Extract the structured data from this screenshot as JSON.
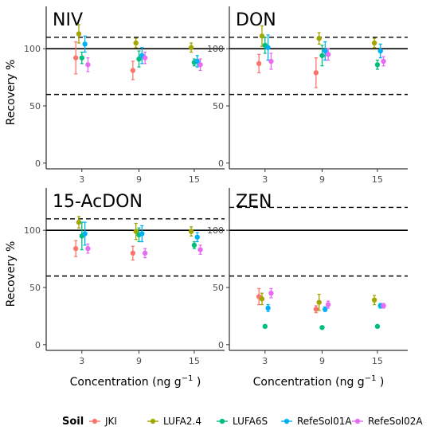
{
  "chart_data": {
    "type": "scatter",
    "figure_ylabel": "Recovery %",
    "figure_xlabel_main": "Concentration (ng g",
    "figure_xlabel_sup": "−1",
    "figure_xlabel_close": " )",
    "x_categories": [
      "3",
      "9",
      "15"
    ],
    "y_ticks": [
      "0",
      "50",
      "100"
    ],
    "ylim": [
      -5,
      137
    ],
    "reference_lines": {
      "solid": 100,
      "dashed_low": 60
    },
    "legend": {
      "title": "Soil",
      "position": "bottom",
      "items": [
        {
          "name": "JKI",
          "color": "#F8766D"
        },
        {
          "name": "LUFA2.4",
          "color": "#A3A500"
        },
        {
          "name": "LUFA6S",
          "color": "#00BF7D"
        },
        {
          "name": "RefeSol01A",
          "color": "#00B0F6"
        },
        {
          "name": "RefeSol02A",
          "color": "#E76BF3"
        }
      ]
    },
    "panels": [
      {
        "title": "NIV",
        "dashed_high": 110,
        "series": [
          {
            "name": "JKI",
            "values": [
              {
                "x": "3",
                "y": 92,
                "err": 14
              },
              {
                "x": "9",
                "y": 81,
                "err": 8
              },
              {
                "x": "15",
                "y": null,
                "err": null
              }
            ]
          },
          {
            "name": "LUFA2.4",
            "values": [
              {
                "x": "3",
                "y": 113,
                "err": 8
              },
              {
                "x": "9",
                "y": 105,
                "err": 4
              },
              {
                "x": "15",
                "y": 101,
                "err": 4
              }
            ]
          },
          {
            "name": "LUFA6S",
            "values": [
              {
                "x": "3",
                "y": 92,
                "err": 5
              },
              {
                "x": "9",
                "y": 91,
                "err": 7
              },
              {
                "x": "15",
                "y": 88,
                "err": 3
              }
            ]
          },
          {
            "name": "RefeSol01A",
            "values": [
              {
                "x": "3",
                "y": 104,
                "err": 7
              },
              {
                "x": "9",
                "y": 94,
                "err": 7
              },
              {
                "x": "15",
                "y": 89,
                "err": 5
              }
            ]
          },
          {
            "name": "RefeSol02A",
            "values": [
              {
                "x": "3",
                "y": 86,
                "err": 6
              },
              {
                "x": "9",
                "y": 92,
                "err": 5
              },
              {
                "x": "15",
                "y": 86,
                "err": 5
              }
            ]
          }
        ]
      },
      {
        "title": "DON",
        "dashed_high": 110,
        "series": [
          {
            "name": "JKI",
            "values": [
              {
                "x": "3",
                "y": 87,
                "err": 8
              },
              {
                "x": "9",
                "y": 79,
                "err": 13
              },
              {
                "x": "15",
                "y": null,
                "err": null
              }
            ]
          },
          {
            "name": "LUFA2.4",
            "values": [
              {
                "x": "3",
                "y": 111,
                "err": 9
              },
              {
                "x": "9",
                "y": 109,
                "err": 5
              },
              {
                "x": "15",
                "y": 105,
                "err": 4
              }
            ]
          },
          {
            "name": "LUFA6S",
            "values": [
              {
                "x": "3",
                "y": 103,
                "err": 7
              },
              {
                "x": "9",
                "y": 94,
                "err": 9
              },
              {
                "x": "15",
                "y": 86,
                "err": 4
              }
            ]
          },
          {
            "name": "RefeSol01A",
            "values": [
              {
                "x": "3",
                "y": 101,
                "err": 11
              },
              {
                "x": "9",
                "y": 98,
                "err": 8
              },
              {
                "x": "15",
                "y": 98,
                "err": 6
              }
            ]
          },
          {
            "name": "RefeSol02A",
            "values": [
              {
                "x": "3",
                "y": 89,
                "err": 7
              },
              {
                "x": "9",
                "y": 95,
                "err": 5
              },
              {
                "x": "15",
                "y": 89,
                "err": 4
              }
            ]
          }
        ]
      },
      {
        "title": "15-AcDON",
        "dashed_high": 110,
        "series": [
          {
            "name": "JKI",
            "values": [
              {
                "x": "3",
                "y": 84,
                "err": 7
              },
              {
                "x": "9",
                "y": 80,
                "err": 6
              },
              {
                "x": "15",
                "y": null,
                "err": null
              }
            ]
          },
          {
            "name": "LUFA2.4",
            "values": [
              {
                "x": "3",
                "y": 107,
                "err": 5
              },
              {
                "x": "9",
                "y": 99,
                "err": 7
              },
              {
                "x": "15",
                "y": 99,
                "err": 4
              }
            ]
          },
          {
            "name": "LUFA6S",
            "values": [
              {
                "x": "3",
                "y": 95,
                "err": 12
              },
              {
                "x": "9",
                "y": 96,
                "err": 6
              },
              {
                "x": "15",
                "y": 87,
                "err": 3
              }
            ]
          },
          {
            "name": "RefeSol01A",
            "values": [
              {
                "x": "3",
                "y": 97,
                "err": 10
              },
              {
                "x": "9",
                "y": 97,
                "err": 7
              },
              {
                "x": "15",
                "y": 94,
                "err": 4
              }
            ]
          },
          {
            "name": "RefeSol02A",
            "values": [
              {
                "x": "3",
                "y": 84,
                "err": 4
              },
              {
                "x": "9",
                "y": 80,
                "err": 4
              },
              {
                "x": "15",
                "y": 83,
                "err": 4
              }
            ]
          }
        ]
      },
      {
        "title": "ZEN",
        "dashed_high": 120,
        "series": [
          {
            "name": "JKI",
            "values": [
              {
                "x": "3",
                "y": 42,
                "err": 7
              },
              {
                "x": "9",
                "y": 31,
                "err": 3
              },
              {
                "x": "15",
                "y": null,
                "err": null
              }
            ]
          },
          {
            "name": "LUFA2.4",
            "values": [
              {
                "x": "3",
                "y": 40,
                "err": 5
              },
              {
                "x": "9",
                "y": 37,
                "err": 7
              },
              {
                "x": "15",
                "y": 39,
                "err": 4
              }
            ]
          },
          {
            "name": "LUFA6S",
            "values": [
              {
                "x": "3",
                "y": 16,
                "err": 1
              },
              {
                "x": "9",
                "y": 15,
                "err": 1
              },
              {
                "x": "15",
                "y": 16,
                "err": 1
              }
            ]
          },
          {
            "name": "RefeSol01A",
            "values": [
              {
                "x": "3",
                "y": 32,
                "err": 3
              },
              {
                "x": "9",
                "y": 31,
                "err": 2
              },
              {
                "x": "15",
                "y": 34,
                "err": 2
              }
            ]
          },
          {
            "name": "RefeSol02A",
            "values": [
              {
                "x": "3",
                "y": 45,
                "err": 4
              },
              {
                "x": "9",
                "y": 35,
                "err": 3
              },
              {
                "x": "15",
                "y": 34,
                "err": 2
              }
            ]
          }
        ]
      }
    ]
  }
}
